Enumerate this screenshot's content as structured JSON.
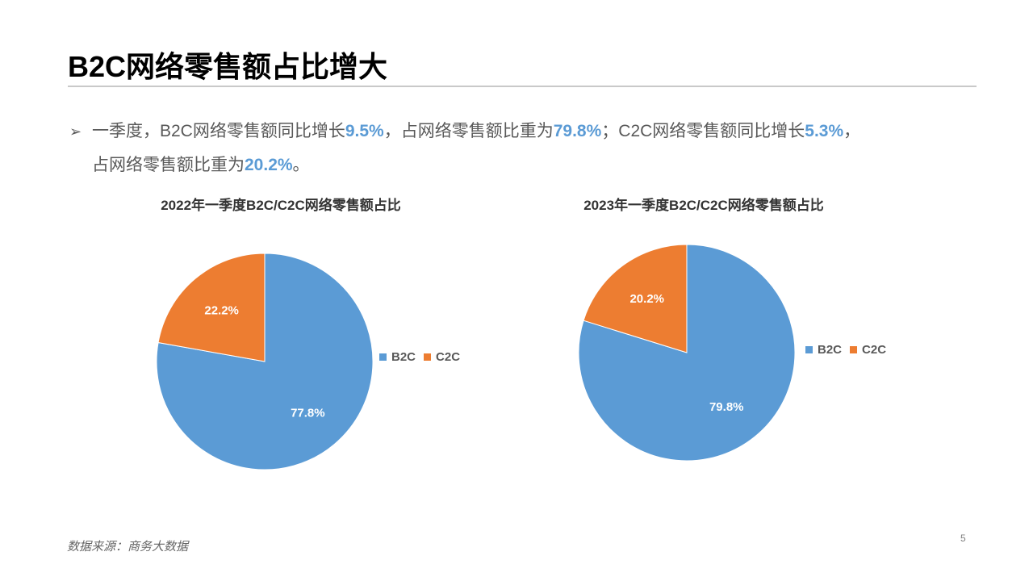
{
  "title": "B2C网络零售额占比增大",
  "bullet": {
    "arrow": "➢",
    "seg1": "一季度，B2C网络零售额同比增长",
    "v1": "9.5%",
    "seg2": "，占网络零售额比重为",
    "v2": "79.8%",
    "seg3": "；C2C网络零售额同比增长",
    "v3": "5.3%",
    "seg4": "，",
    "seg5": "占网络零售额比重为",
    "v4": "20.2%",
    "seg6": "。"
  },
  "colors": {
    "B2C": "#5b9bd5",
    "C2C": "#ed7d31",
    "highlight": "#5b9bd5"
  },
  "chart_data": [
    {
      "type": "pie",
      "title": "2022年一季度B2C/C2C网络零售额占比",
      "labels": [
        "B2C",
        "C2C"
      ],
      "values": [
        77.8,
        22.2
      ],
      "data_labels": [
        "77.8%",
        "22.2%"
      ],
      "legend_position": "right"
    },
    {
      "type": "pie",
      "title": "2023年一季度B2C/C2C网络零售额占比",
      "labels": [
        "B2C",
        "C2C"
      ],
      "values": [
        79.8,
        20.2
      ],
      "data_labels": [
        "79.8%",
        "20.2%"
      ],
      "legend_position": "right"
    }
  ],
  "legend": {
    "b2c": "B2C",
    "c2c": "C2C"
  },
  "source": "数据来源：商务大数据",
  "page_number": "5"
}
